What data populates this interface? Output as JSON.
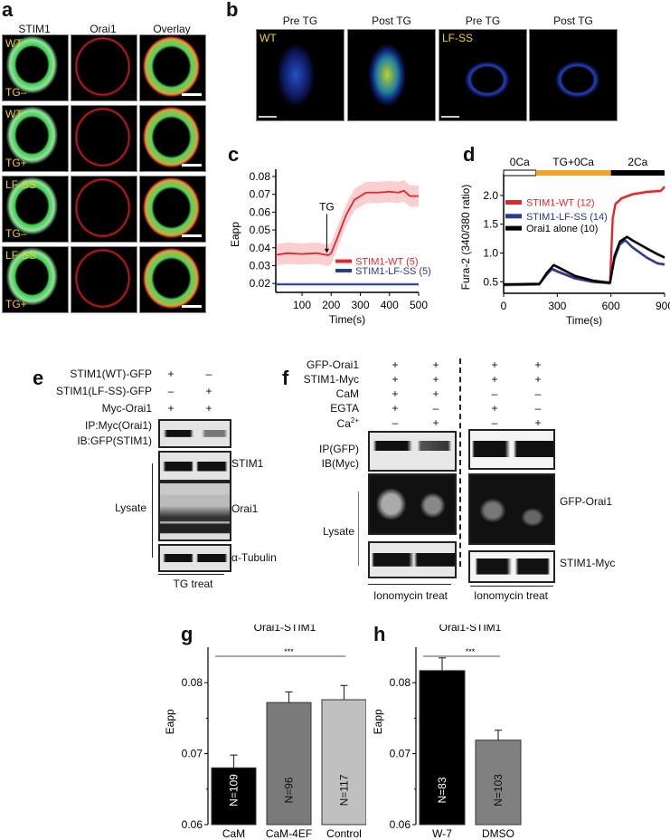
{
  "panels": {
    "a": {
      "label": "a",
      "columns": [
        "STIM1",
        "Orai1",
        "Overlay"
      ],
      "rows": [
        {
          "top": "WT",
          "bottom": "TG–"
        },
        {
          "top": "WT",
          "bottom": "TG+"
        },
        {
          "top": "LF-SS",
          "bottom": "TG–"
        },
        {
          "top": "LF-SS",
          "bottom": "TG+"
        }
      ]
    },
    "b": {
      "label": "b",
      "columns": [
        "Pre TG",
        "Post TG",
        "Pre TG",
        "Post TG"
      ],
      "tags": [
        "WT",
        "",
        "LF-SS",
        ""
      ]
    },
    "c": {
      "label": "c"
    },
    "d": {
      "label": "d"
    },
    "e": {
      "label": "e",
      "conditions": [
        {
          "name": "STIM1(WT)-GFP",
          "values": [
            "+",
            "–"
          ]
        },
        {
          "name": "STIM1(LF-SS)-GFP",
          "values": [
            "–",
            "+"
          ]
        },
        {
          "name": "Myc-Orai1",
          "values": [
            "+",
            "+"
          ]
        }
      ],
      "ip_label_1": "IP:Myc(Orai1)",
      "ip_label_2": "IB:GFP(STIM1)",
      "lysate_label": "Lysate",
      "band_labels": [
        "STIM1",
        "Orai1",
        "α-Tubulin"
      ],
      "footer": "TG treat"
    },
    "f": {
      "label": "f",
      "conditions": [
        {
          "name": "GFP-Orai1",
          "values": [
            "+",
            "+",
            "+",
            "+"
          ]
        },
        {
          "name": "STIM1-Myc",
          "values": [
            "+",
            "+",
            "+",
            "+"
          ]
        },
        {
          "name": "CaM",
          "values": [
            "+",
            "+",
            "–",
            "–"
          ]
        },
        {
          "name": "EGTA",
          "values": [
            "+",
            "–",
            "+",
            "–"
          ]
        },
        {
          "name": "Ca",
          "sup": "2+",
          "values": [
            "–",
            "+",
            "–",
            "+"
          ]
        }
      ],
      "ip_label_1": "IP(GFP)",
      "ip_label_2": "IB(Myc)",
      "lysate_label": "Lysate",
      "band_labels": [
        "GFP-Orai1",
        "STIM1-Myc"
      ],
      "footer_left": "Ionomycin treat",
      "footer_right": "Ionomycin treat"
    },
    "g": {
      "label": "g"
    },
    "h": {
      "label": "h"
    }
  },
  "chart_data": [
    {
      "id": "c",
      "type": "line",
      "title": "",
      "xlabel": "Time(s)",
      "ylabel": "Eapp",
      "xlim": [
        10,
        500
      ],
      "ylim": [
        0.015,
        0.08
      ],
      "xticks": [
        100,
        200,
        300,
        400,
        500
      ],
      "yticks": [
        0.02,
        0.03,
        0.04,
        0.05,
        0.06,
        0.07,
        0.08
      ],
      "yticklabels": [
        "0.02",
        "0.03",
        "0.04",
        "0.05",
        "0.06",
        "0.07",
        "0.08"
      ],
      "annotation": "TG",
      "annotation_x": 185,
      "legend": [
        "STIM1-WT (5)",
        "STIM1-LF-SS (5)"
      ],
      "series": [
        {
          "name": "STIM1-WT (5)",
          "color": "#e3262b",
          "band": 0.006,
          "x": [
            10,
            50,
            100,
            150,
            190,
            200,
            220,
            250,
            280,
            320,
            360,
            400,
            430,
            450,
            470,
            500
          ],
          "y": [
            0.036,
            0.037,
            0.0365,
            0.037,
            0.0358,
            0.037,
            0.045,
            0.058,
            0.067,
            0.071,
            0.071,
            0.0715,
            0.071,
            0.072,
            0.069,
            0.069
          ]
        },
        {
          "name": "STIM1-LF-SS (5)",
          "color": "#2b3990",
          "band": 0.001,
          "x": [
            10,
            100,
            200,
            300,
            400,
            500
          ],
          "y": [
            0.0195,
            0.0195,
            0.0195,
            0.0195,
            0.0195,
            0.0195
          ]
        }
      ]
    },
    {
      "id": "d",
      "type": "line",
      "title": "",
      "xlabel": "Time(s)",
      "ylabel": "Fura-2 (340/380 ratio)",
      "xlim": [
        0,
        900
      ],
      "ylim": [
        0.3,
        2.25
      ],
      "xticks": [
        0,
        300,
        600,
        900
      ],
      "yticks": [
        0.5,
        1.0,
        1.5,
        2.0
      ],
      "yticklabels": [
        "0.5",
        "1.0",
        "1.5",
        "2.0"
      ],
      "phases": [
        {
          "label": "0Ca",
          "start": 0,
          "end": 180,
          "color": "#ffffff"
        },
        {
          "label": "TG+0Ca",
          "start": 180,
          "end": 600,
          "color": "#f4a12a"
        },
        {
          "label": "2Ca",
          "start": 600,
          "end": 900,
          "color": "#000000"
        }
      ],
      "legend": [
        "STIM1-WT (12)",
        "STIM1-LF-SS (14)",
        "Orai1 alone (10)"
      ],
      "series": [
        {
          "name": "STIM1-WT (12)",
          "color": "#e3262b",
          "x": [
            0,
            200,
            240,
            270,
            300,
            400,
            500,
            595,
            610,
            625,
            660,
            720,
            800,
            880,
            900
          ],
          "y": [
            0.45,
            0.46,
            0.62,
            0.73,
            0.68,
            0.56,
            0.5,
            0.48,
            1.6,
            1.85,
            1.95,
            2.02,
            2.06,
            2.08,
            2.15
          ]
        },
        {
          "name": "STIM1-LF-SS (14)",
          "color": "#2b3990",
          "x": [
            0,
            200,
            240,
            270,
            300,
            400,
            500,
            595,
            620,
            650,
            680,
            720,
            800,
            860,
            900
          ],
          "y": [
            0.45,
            0.46,
            0.62,
            0.72,
            0.68,
            0.56,
            0.5,
            0.48,
            0.9,
            1.15,
            1.22,
            1.1,
            0.92,
            0.82,
            0.8
          ]
        },
        {
          "name": "Orai1 alone (10)",
          "color": "#000000",
          "x": [
            0,
            200,
            240,
            280,
            300,
            400,
            500,
            595,
            620,
            650,
            690,
            720,
            800,
            860,
            900
          ],
          "y": [
            0.45,
            0.46,
            0.65,
            0.79,
            0.76,
            0.6,
            0.52,
            0.48,
            0.95,
            1.2,
            1.28,
            1.22,
            1.08,
            0.98,
            0.92
          ]
        }
      ]
    },
    {
      "id": "g",
      "type": "bar",
      "title": "Orai1-STIM1",
      "xlabel": "",
      "ylabel": "Eapp",
      "ylim": [
        0.06,
        0.085
      ],
      "yticks": [
        0.06,
        0.07,
        0.08
      ],
      "yticklabels": [
        "0.06",
        "0.07",
        "0.08"
      ],
      "categories": [
        "CaM",
        "CaM-4EF",
        "Control"
      ],
      "values": [
        0.068,
        0.0772,
        0.0776
      ],
      "errors": [
        0.0018,
        0.0015,
        0.002
      ],
      "n_labels": [
        "N=109",
        "N=96",
        "N=117"
      ],
      "colors": [
        "#000000",
        "#7a7a7a",
        "#c0c0c0"
      ],
      "significance": "***"
    },
    {
      "id": "h",
      "type": "bar",
      "title": "Orai1-STIM1",
      "xlabel": "",
      "ylabel": "Eapp",
      "ylim": [
        0.06,
        0.085
      ],
      "yticks": [
        0.06,
        0.07,
        0.08
      ],
      "yticklabels": [
        "0.06",
        "0.07",
        "0.08"
      ],
      "categories": [
        "W-7",
        "DMSO"
      ],
      "values": [
        0.0817,
        0.0719
      ],
      "errors": [
        0.0018,
        0.0014
      ],
      "n_labels": [
        "N=83",
        "N=103"
      ],
      "colors": [
        "#000000",
        "#808080"
      ],
      "significance": "***"
    }
  ]
}
